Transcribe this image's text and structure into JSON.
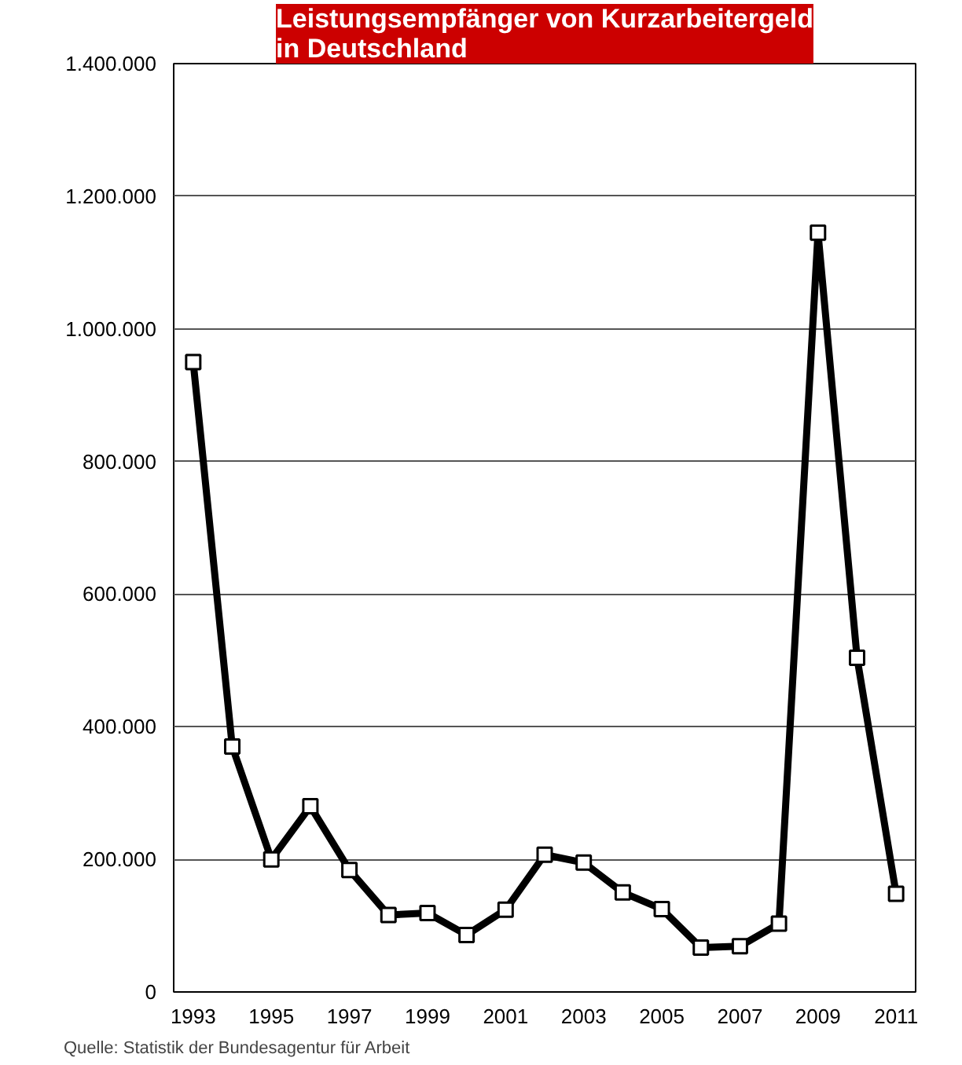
{
  "chart_data": {
    "type": "line",
    "title": "Leistungsempfänger von Kurzarbeitergeld\nin Deutschland",
    "x": [
      1993,
      1994,
      1995,
      1996,
      1997,
      1998,
      1999,
      2000,
      2001,
      2002,
      2003,
      2004,
      2005,
      2006,
      2007,
      2008,
      2009,
      2010,
      2011
    ],
    "series": [
      {
        "color": "#000000",
        "values": [
          950000,
          370000,
          200000,
          280000,
          184000,
          116000,
          119000,
          86000,
          124000,
          207000,
          195000,
          150000,
          125000,
          67000,
          69000,
          103000,
          1145000,
          504000,
          148000
        ]
      }
    ],
    "xlim": [
      1992.5,
      2011.5
    ],
    "xticks": [
      1993,
      1995,
      1997,
      1999,
      2001,
      2003,
      2005,
      2007,
      2009,
      2011
    ],
    "ylim": [
      0,
      1400000
    ],
    "yticks": [
      0,
      {
        "value": 200000,
        "label": "200.000"
      },
      {
        "value": 400000,
        "label": "400.000"
      },
      {
        "value": 600000,
        "label": "600.000"
      },
      {
        "value": 800000,
        "label": "800.000"
      },
      {
        "value": 1000000,
        "label": "1.000.000"
      },
      {
        "value": 1200000,
        "label": "1.200.000"
      },
      {
        "value": 1400000,
        "label": "1.400.000"
      }
    ],
    "grid": "y",
    "marker": "square",
    "line_style": "solid",
    "annotations": [
      "Quelle: Statistik der Bundesagentur für Arbeit"
    ]
  }
}
